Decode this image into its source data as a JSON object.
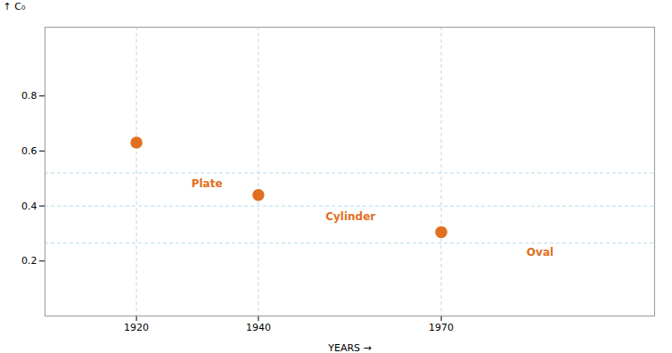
{
  "chart_data": {
    "type": "scatter",
    "x": [
      1920,
      1940,
      1970
    ],
    "values": [
      0.63,
      0.44,
      0.305
    ],
    "color": "#E07020",
    "xlabel": "YEARS",
    "ylabel": "C₀",
    "xlim": [
      1905,
      2005
    ],
    "ylim": [
      0.0,
      1.05
    ],
    "xticks": [
      1920,
      1940,
      1970
    ],
    "yticks": [
      0.2,
      0.4,
      0.6,
      0.8
    ],
    "grid": "x",
    "reference_lines": [
      0.52,
      0.4,
      0.265
    ],
    "annotations": [
      {
        "text": "Plate",
        "x": 1929,
        "y": 0.495
      },
      {
        "text": "Cylinder",
        "x": 1951,
        "y": 0.375
      },
      {
        "text": "Oval",
        "x": 1984,
        "y": 0.247
      }
    ]
  }
}
